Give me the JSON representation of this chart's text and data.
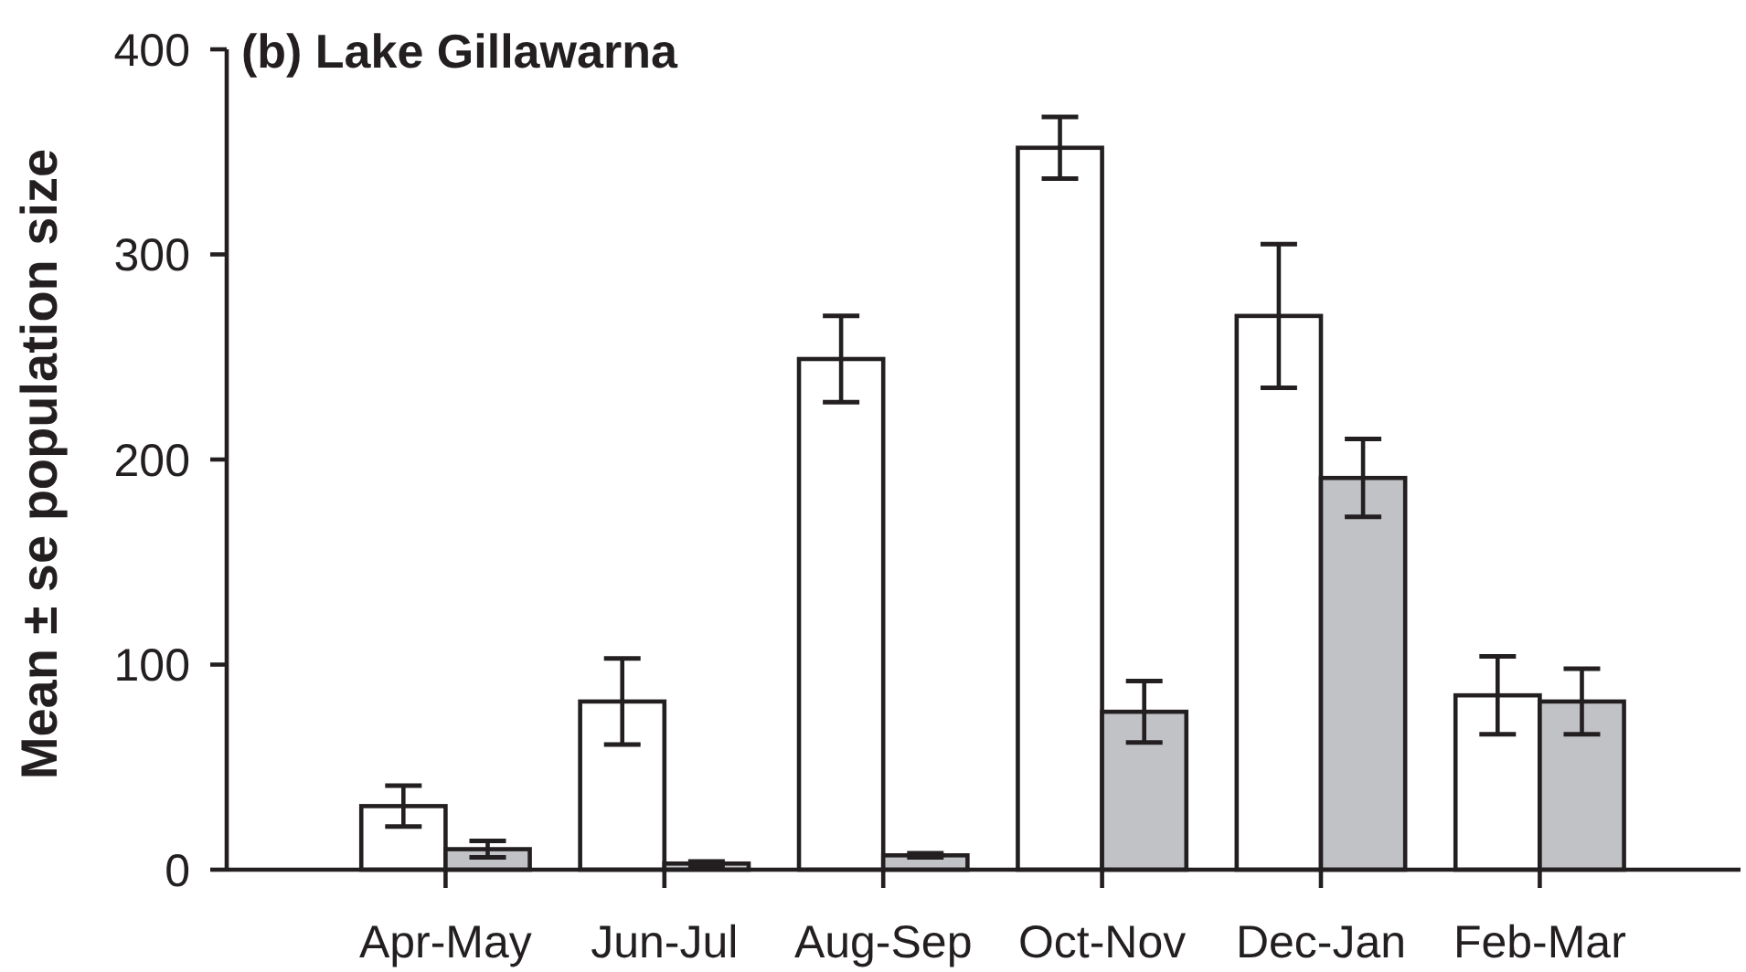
{
  "chart_data": {
    "type": "bar",
    "title": "(b) Lake Gillawarna",
    "ylabel": "Mean ± se population size",
    "categories": [
      "Apr-May",
      "Jun-Jul",
      "Aug-Sep",
      "Oct-Nov",
      "Dec-Jan",
      "Feb-Mar"
    ],
    "series": [
      {
        "color": "#ffffff",
        "values": [
          31,
          82,
          249,
          352,
          270,
          85
        ],
        "errors": [
          10,
          21,
          21,
          15,
          35,
          19
        ]
      },
      {
        "color": "#c1c2c5",
        "values": [
          10,
          3,
          7,
          77,
          191,
          82
        ],
        "errors": [
          4,
          1,
          1,
          15,
          19,
          16
        ]
      }
    ],
    "ylim": [
      0,
      400
    ],
    "yticks": [
      0,
      100,
      200,
      300,
      400
    ]
  }
}
